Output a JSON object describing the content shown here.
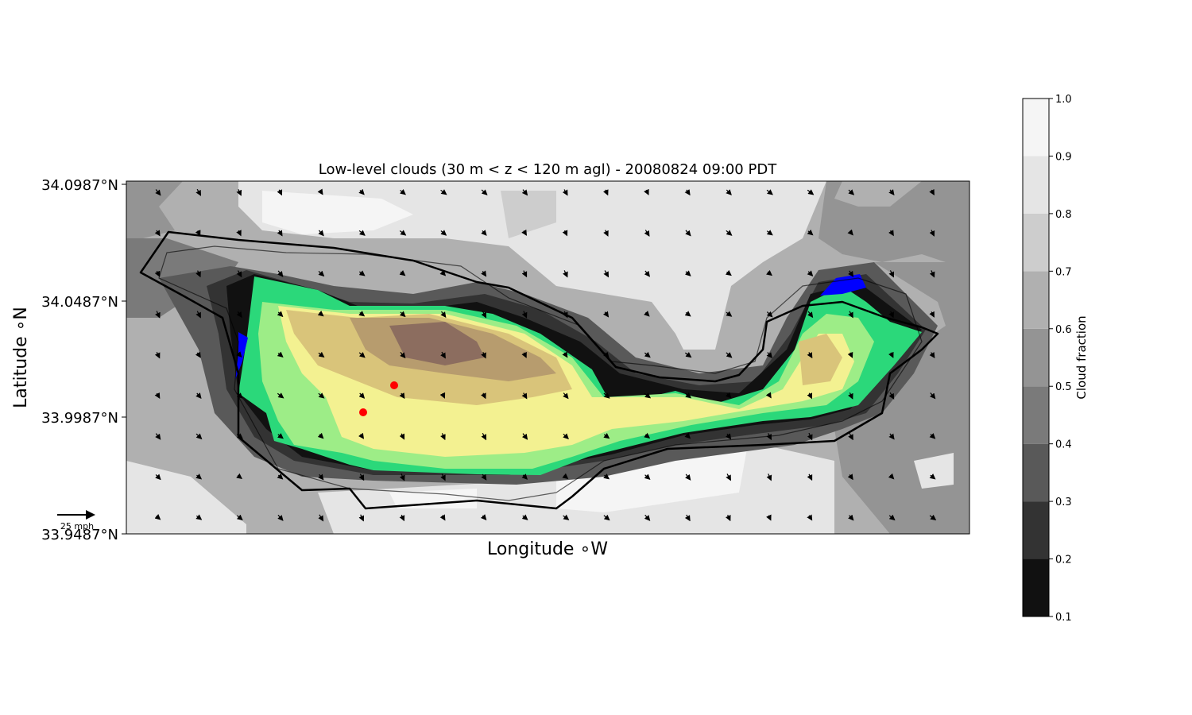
{
  "chart_data": {
    "type": "contour-map",
    "title": "Low-level clouds (30 m < z < 120 m agl) - 20080824 09:00 PDT",
    "xlabel": "Longitude $^\\circ$W",
    "ylabel": "Latitude $^\\circ$N",
    "xlabel_display": "Longitude ∘W",
    "ylabel_display": "Latitude ∘N",
    "y_ticks": [
      "34.0987°N",
      "34.0487°N",
      "33.9987°N",
      "33.9487°N"
    ],
    "y_tick_values": [
      34.0987,
      34.0487,
      33.9987,
      33.9487
    ],
    "ylim": [
      33.9487,
      34.0987
    ],
    "x_ticks": [],
    "colorbar": {
      "label": "Cloud fraction",
      "ticks": [
        "0.1",
        "0.2",
        "0.3",
        "0.4",
        "0.5",
        "0.6",
        "0.7",
        "0.8",
        "0.9",
        "1.0"
      ],
      "levels": [
        0.1,
        0.2,
        0.3,
        0.4,
        0.5,
        0.6,
        0.7,
        0.8,
        0.9,
        1.0
      ],
      "colors": [
        "#111111",
        "#333333",
        "#595959",
        "#7a7a7a",
        "#949494",
        "#b0b0b0",
        "#cdcdcd",
        "#e5e5e5",
        "#f5f5f5"
      ]
    },
    "terrain_colors": [
      "#0000ff",
      "#2bd87a",
      "#9ded87",
      "#f3f191",
      "#d9c47a",
      "#b79c6e",
      "#8c6d5f"
    ],
    "markers": {
      "color": "#ff0000",
      "count": 2
    },
    "wind_key": {
      "label": "25 mph"
    },
    "grid": false
  }
}
